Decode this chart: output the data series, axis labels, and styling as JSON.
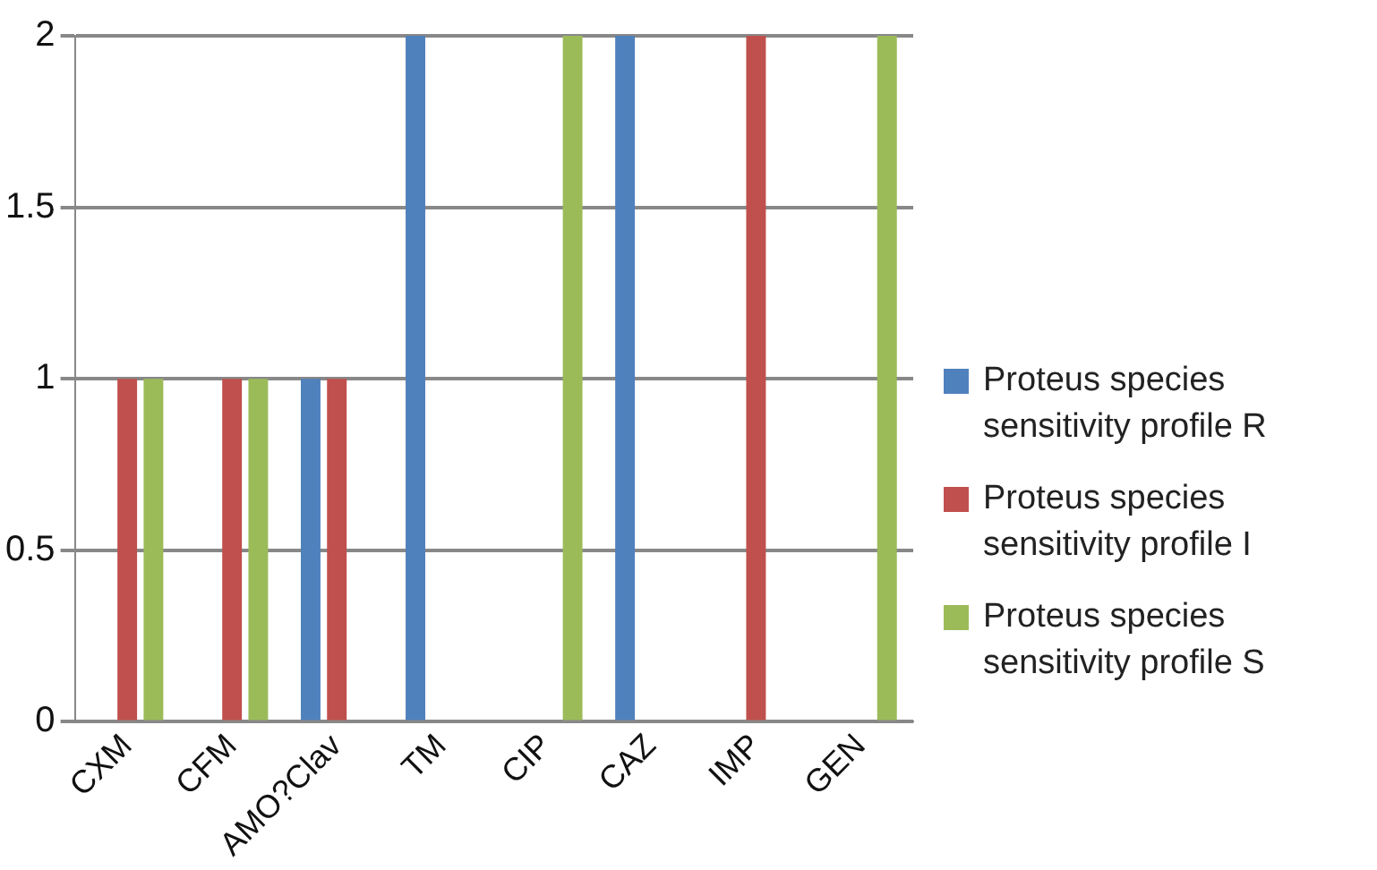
{
  "chart_data": {
    "type": "bar",
    "categories": [
      "CXM",
      "CFM",
      "AMO?Clav",
      "TM",
      "CIP",
      "CAZ",
      "IMP",
      "GEN"
    ],
    "series": [
      {
        "name": "Proteus species sensitivity profile R",
        "color": "#4f81bd",
        "values": [
          0,
          0,
          1,
          2,
          0,
          2,
          0,
          0
        ]
      },
      {
        "name": "Proteus species sensitivity profile I",
        "color": "#c0504d",
        "values": [
          1,
          1,
          1,
          0,
          0,
          0,
          2,
          0
        ]
      },
      {
        "name": "Proteus species sensitivity profile S",
        "color": "#9bbb59",
        "values": [
          1,
          1,
          0,
          0,
          2,
          0,
          0,
          2
        ]
      }
    ],
    "ylim": [
      0,
      2
    ],
    "yticks": [
      0,
      0.5,
      1,
      1.5,
      2
    ],
    "grid": "y",
    "legend": "right"
  }
}
